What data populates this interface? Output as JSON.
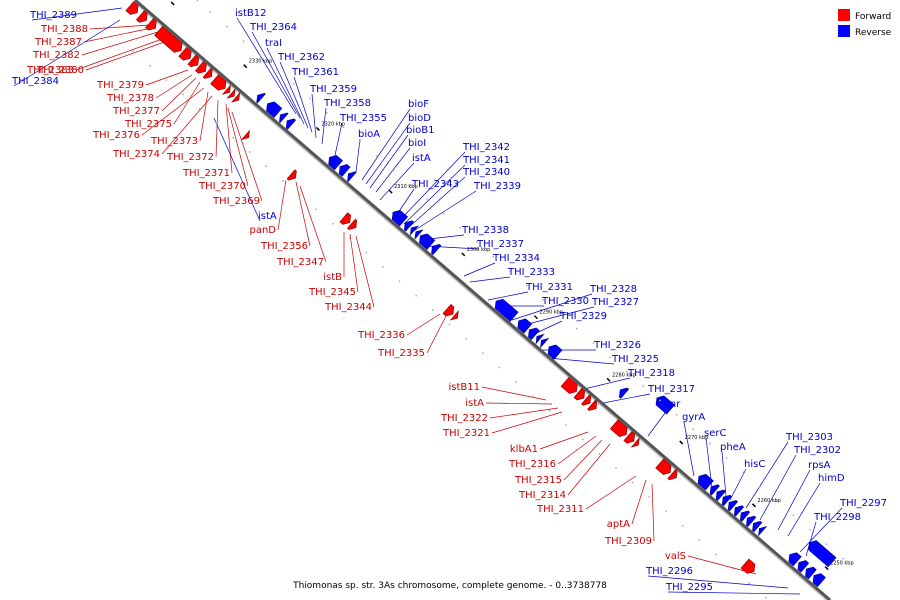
{
  "caption": "Thiomonas sp. str. 3As chromosome, complete genome. - 0..3738778",
  "legend": [
    {
      "label": "Forward",
      "color": "#ff0000"
    },
    {
      "label": "Reverse",
      "color": "#0000ff"
    }
  ],
  "colors": {
    "forward_fill": "#ff0000",
    "reverse_fill": "#0000ff",
    "forward_line": "#cc0000",
    "reverse_line": "#0000cc",
    "track": "#999999"
  },
  "ticks": [
    "2340 kbp",
    "2330 kbp",
    "2320 kbp",
    "2310 kbp",
    "2300 kbp",
    "2290 kbp",
    "2280 kbp",
    "2270 kbp",
    "2260 kbp",
    "2250 kbp"
  ],
  "forward_labels": [
    "THI_2388",
    "THI_2387",
    "THI_2382",
    "THI_2380",
    "THI_2383",
    "THI_2379",
    "THI_2378",
    "THI_2377",
    "THI_2375",
    "THI_2376",
    "THI_2373",
    "THI_2374",
    "THI_2372",
    "THI_2371",
    "THI_2370",
    "THI_2369",
    "panD",
    "THI_2356",
    "THI_2347",
    "istB",
    "THI_2345",
    "THI_2344",
    "THI_2336",
    "THI_2335",
    "istB11",
    "istA",
    "THI_2322",
    "THI_2321",
    "klbA1",
    "THI_2316",
    "THI_2315",
    "THI_2314",
    "THI_2311",
    "aptA",
    "THI_2309",
    "valS"
  ],
  "reverse_labels": [
    "THI_2389",
    "THI_2384",
    "istB12",
    "THI_2364",
    "traI",
    "THI_2362",
    "THI_2361",
    "THI_2359",
    "THI_2358",
    "THI_2355",
    "bioA",
    "bioF",
    "bioD",
    "bioB1",
    "bioI",
    "istA",
    "THI_2342",
    "THI_2341",
    "THI_2340",
    "THI_2343",
    "THI_2339",
    "THI_2338",
    "THI_2337",
    "THI_2334",
    "THI_2333",
    "THI_2331",
    "THI_2330",
    "THI_2328",
    "THI_2327",
    "THI_2329",
    "THI_2326",
    "THI_2325",
    "THI_2318",
    "THI_2317",
    "rnr",
    "gyrA",
    "serC",
    "pheA",
    "hisC",
    "THI_2303",
    "THI_2302",
    "rpsA",
    "himD",
    "THI_2297",
    "THI_2298",
    "THI_2296",
    "THI_2295",
    "istA"
  ]
}
